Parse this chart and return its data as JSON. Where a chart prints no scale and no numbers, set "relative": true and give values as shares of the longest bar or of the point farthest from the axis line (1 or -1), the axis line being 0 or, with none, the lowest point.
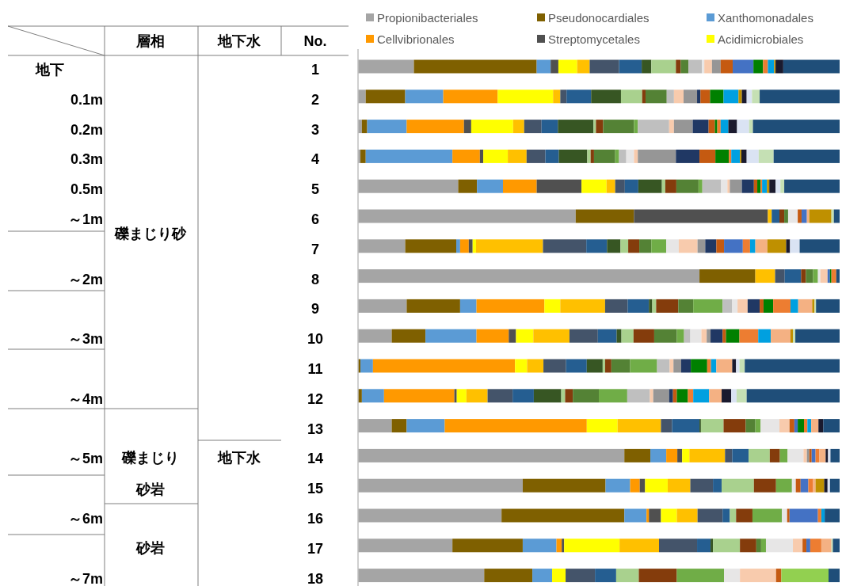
{
  "chart_data": {
    "type": "bar",
    "orientation": "horizontal",
    "stacked": true,
    "relative": true,
    "legend": "top",
    "categories": [
      "1",
      "2",
      "3",
      "4",
      "5",
      "6",
      "7",
      "8",
      "9",
      "10",
      "11",
      "12",
      "13",
      "14",
      "15",
      "16",
      "17",
      "18"
    ],
    "annotations": [
      "層相",
      "地下水",
      "No.",
      "礫まじり砂",
      "礫まじり",
      "砂岩",
      "砂岩",
      "地下水",
      "地下",
      "0.1m",
      "0.2m",
      "0.3m",
      "0.5m",
      "～1m",
      "～2m",
      "～3m",
      "～4m",
      "～5m",
      "～6m",
      "～7m"
    ],
    "series": [
      {
        "name": "Propionibacteriales",
        "color": "#a5a5a5",
        "values": [
          0.116,
          0.016,
          0.008,
          0.005,
          0.208,
          0.452,
          0.098,
          0.709,
          0.101,
          0.07,
          0,
          0,
          0.07,
          0.553,
          0.342,
          0.298,
          0.196,
          0.262
        ]
      },
      {
        "name": "Pseudonocardiales",
        "color": "#7f6000",
        "values": [
          0.255,
          0.082,
          0.011,
          0.011,
          0.039,
          0.121,
          0.106,
          0.116,
          0.111,
          0.07,
          0.005,
          0.008,
          0.031,
          0.054,
          0.172,
          0.255,
          0.146,
          0.1
        ]
      },
      {
        "name": "Xanthomonadales",
        "color": "#5b9bd5",
        "values": [
          0.029,
          0.079,
          0.082,
          0.18,
          0.054,
          0,
          0.008,
          0,
          0.034,
          0.106,
          0.026,
          0.046,
          0.079,
          0.033,
          0.051,
          0.046,
          0.07,
          0.041
        ]
      },
      {
        "name": "Cellvibrionales",
        "color": "#ff9900",
        "values": [
          0,
          0.113,
          0.119,
          0.057,
          0.07,
          0,
          0.018,
          0,
          0.141,
          0.067,
          0.295,
          0.146,
          0.295,
          0.023,
          0.02,
          0.005,
          0.011,
          0
        ]
      },
      {
        "name": "Streptomycetales",
        "color": "#505050",
        "values": [
          0.016,
          0,
          0.015,
          0.007,
          0.093,
          0.278,
          0.008,
          0,
          0,
          0.015,
          0,
          0.005,
          0,
          0.01,
          0.011,
          0.025,
          0.005,
          0
        ]
      },
      {
        "name": "Acidimicrobiales",
        "color": "#ffff00",
        "values": [
          0.039,
          0.115,
          0.087,
          0.051,
          0.052,
          0,
          0.007,
          0,
          0.033,
          0.036,
          0.025,
          0.02,
          0.064,
          0.015,
          0.047,
          0.033,
          0.115,
          0.028
        ]
      },
      {
        "color": "#ffc000",
        "values": [
          0.026,
          0.015,
          0.023,
          0.039,
          0.018,
          0.008,
          0.139,
          0.041,
          0.093,
          0.075,
          0.034,
          0.044,
          0.09,
          0.074,
          0.047,
          0.043,
          0.082,
          0
        ]
      },
      {
        "color": "#44546a",
        "values": [
          0.061,
          0.013,
          0.036,
          0.039,
          0.02,
          0,
          0.09,
          0.02,
          0.047,
          0.059,
          0.047,
          0.052,
          0.023,
          0.015,
          0.047,
          0.052,
          0.079,
          0.061
        ]
      },
      {
        "color": "#255e91",
        "values": [
          0.047,
          0.051,
          0.034,
          0.028,
          0.028,
          0.016,
          0.043,
          0.034,
          0.044,
          0.039,
          0.043,
          0.044,
          0.057,
          0.034,
          0.018,
          0.015,
          0.028,
          0.044
        ]
      },
      {
        "color": "#375623",
        "values": [
          0.02,
          0.062,
          0.074,
          0.059,
          0.049,
          0,
          0.028,
          0,
          0.007,
          0.01,
          0.033,
          0.057,
          0.003,
          0,
          0,
          0,
          0.005,
          0
        ]
      },
      {
        "color": "#a9d18e",
        "values": [
          0.051,
          0.044,
          0.005,
          0.007,
          0.007,
          0,
          0.016,
          0,
          0.008,
          0.025,
          0.005,
          0.008,
          0.047,
          0.044,
          0.067,
          0.013,
          0.056,
          0.047
        ]
      },
      {
        "color": "#843c0c",
        "values": [
          0.01,
          0.007,
          0.015,
          0.007,
          0.023,
          0.01,
          0.023,
          0.01,
          0.046,
          0.043,
          0.013,
          0.016,
          0.046,
          0.021,
          0.046,
          0.034,
          0.034,
          0.079
        ]
      },
      {
        "color": "#548235",
        "values": [
          0.016,
          0.044,
          0.064,
          0.044,
          0.046,
          0.008,
          0.025,
          0.015,
          0.031,
          0.047,
          0.039,
          0.054,
          0.02,
          0,
          0,
          0,
          0.01,
          0
        ]
      },
      {
        "color": "#70ad47",
        "values": [
          0,
          0,
          0.008,
          0.008,
          0.008,
          0,
          0.031,
          0.01,
          0.061,
          0.015,
          0.056,
          0.059,
          0.011,
          0.016,
          0.033,
          0.061,
          0.01,
          0.098
        ]
      },
      {
        "color": "#bfbfbf",
        "values": [
          0.028,
          0.015,
          0.065,
          0.015,
          0.039,
          0,
          0,
          0,
          0.02,
          0.013,
          0.026,
          0.047,
          0,
          0,
          0,
          0,
          0,
          0
        ]
      },
      {
        "color": "#e7e6e6",
        "values": [
          0.005,
          0,
          0,
          0.016,
          0.013,
          0.02,
          0.026,
          0.005,
          0.011,
          0.023,
          0,
          0,
          0.039,
          0.033,
          0.008,
          0.011,
          0.056,
          0.033
        ]
      },
      {
        "color": "#f8cbad",
        "values": [
          0.016,
          0.02,
          0.01,
          0.008,
          0.005,
          0,
          0.039,
          0.015,
          0.021,
          0.011,
          0.008,
          0.007,
          0.021,
          0.007,
          0,
          0,
          0.02,
          0.075
        ]
      },
      {
        "color": "#969696",
        "values": [
          0.018,
          0.028,
          0.039,
          0.079,
          0.025,
          0,
          0.016,
          0,
          0,
          0.008,
          0.016,
          0.033,
          0,
          0.005,
          0,
          0,
          0,
          0
        ]
      },
      {
        "color": "#203864",
        "values": [
          0,
          0.007,
          0.033,
          0.049,
          0.025,
          0,
          0.023,
          0,
          0.025,
          0.025,
          0.02,
          0.008,
          0,
          0,
          0,
          0,
          0,
          0
        ]
      },
      {
        "color": "#c55a11",
        "values": [
          0.025,
          0.02,
          0.013,
          0.033,
          0.007,
          0.008,
          0.016,
          0,
          0.008,
          0.007,
          0,
          0.008,
          0.01,
          0.005,
          0.01,
          0.005,
          0.008,
          0.011
        ]
      },
      {
        "color": "#4472c4",
        "values": [
          0.043,
          0,
          0,
          0,
          0,
          0.011,
          0.039,
          0.005,
          0,
          0,
          0,
          0,
          0.007,
          0.008,
          0.016,
          0.059,
          0.008,
          0
        ]
      },
      {
        "color": "#008000",
        "values": [
          0.02,
          0.028,
          0.005,
          0.028,
          0.007,
          0,
          0,
          0.003,
          0.02,
          0.028,
          0.034,
          0.023,
          0.013,
          0,
          0,
          0,
          0,
          0
        ]
      },
      {
        "color": "#ed7d31",
        "values": [
          0.01,
          0,
          0.007,
          0.005,
          0.003,
          0,
          0.015,
          0.01,
          0.036,
          0.039,
          0.008,
          0.011,
          0.007,
          0.008,
          0.01,
          0.007,
          0.023,
          0
        ]
      },
      {
        "color": "#00a0e0",
        "values": [
          0.013,
          0.031,
          0.016,
          0.018,
          0.01,
          0,
          0.011,
          0,
          0.016,
          0.026,
          0.011,
          0.033,
          0.008,
          0,
          0,
          0.007,
          0,
          0
        ]
      },
      {
        "color": "#f4b183",
        "values": [
          0,
          0,
          0,
          0,
          0,
          0.005,
          0.025,
          0,
          0.029,
          0.041,
          0.033,
          0.026,
          0.015,
          0.013,
          0.005,
          0,
          0.021,
          0
        ]
      },
      {
        "color": "#bf9000",
        "values": [
          0.003,
          0.007,
          0,
          0.003,
          0.005,
          0.046,
          0.039,
          0,
          0.005,
          0.005,
          0,
          0,
          0,
          0,
          0.018,
          0,
          0,
          0
        ]
      },
      {
        "color": "#1a1a2e",
        "values": [
          0.016,
          0.01,
          0.018,
          0.011,
          0.013,
          0,
          0.008,
          0,
          0,
          0,
          0.008,
          0.02,
          0.01,
          0.005,
          0.007,
          0,
          0,
          0
        ]
      },
      {
        "color": "#dae3f3",
        "values": [
          0,
          0.011,
          0.025,
          0.025,
          0.01,
          0,
          0.02,
          0,
          0,
          0,
          0.007,
          0.011,
          0,
          0.005,
          0.005,
          0,
          0,
          0
        ]
      },
      {
        "color": "#c5e0b4",
        "values": [
          0,
          0.016,
          0.008,
          0.031,
          0.008,
          0.005,
          0,
          0,
          0.003,
          0.005,
          0.011,
          0.021,
          0,
          0,
          0,
          0,
          0.003,
          0
        ]
      },
      {
        "color": "#92d050",
        "values": [
          0,
          0,
          0,
          0,
          0,
          0,
          0,
          0,
          0,
          0,
          0,
          0,
          0,
          0,
          0,
          0,
          0,
          0.098
        ]
      },
      {
        "color": "#1f4e79",
        "values": [
          0.117,
          0.166,
          0.18,
          0.137,
          0.115,
          0.012,
          0.083,
          0.007,
          0.049,
          0.092,
          0.197,
          0.193,
          0.034,
          0.019,
          0.02,
          0.031,
          0.014,
          0.023
        ]
      }
    ]
  }
}
